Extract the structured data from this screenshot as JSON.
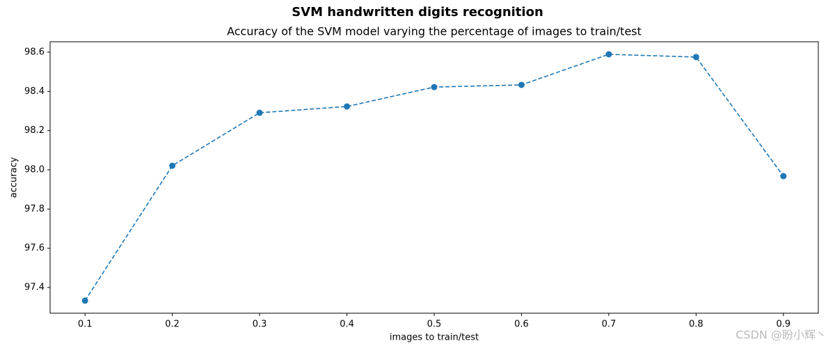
{
  "chart_data": {
    "type": "line",
    "suptitle": "SVM handwritten digits recognition",
    "title": "Accuracy of the SVM model varying the percentage of images to train/test",
    "xlabel": "images to train/test",
    "ylabel": "accuracy",
    "x": [
      0.1,
      0.2,
      0.3,
      0.4,
      0.5,
      0.6,
      0.7,
      0.8,
      0.9
    ],
    "values": [
      97.333,
      98.021,
      98.291,
      98.323,
      98.422,
      98.433,
      98.589,
      98.575,
      97.968
    ],
    "color": "#1f77b4",
    "linestyle": "dashed",
    "marker": "circle",
    "xlim": [
      0.06,
      0.94
    ],
    "ylim": [
      97.269,
      98.653
    ],
    "xticks": [
      0.1,
      0.2,
      0.3,
      0.4,
      0.5,
      0.6,
      0.7,
      0.8,
      0.9
    ],
    "yticks": [
      97.4,
      97.6,
      97.8,
      {
        "value": 98,
        "label": "98.0"
      },
      98.2,
      98.4,
      98.6
    ],
    "watermark": "CSDN @盼小辉丶"
  }
}
